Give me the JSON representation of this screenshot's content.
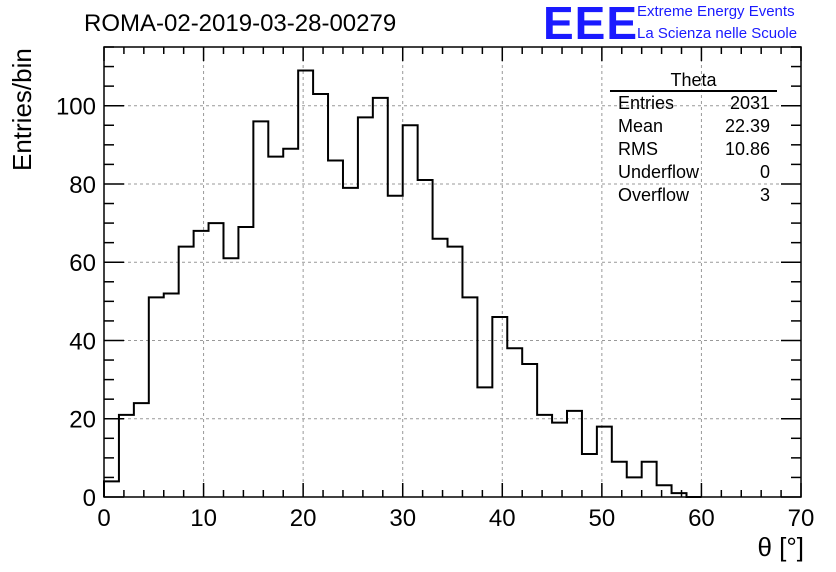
{
  "header": {
    "title": "ROMA-02-2019-03-28-00279",
    "logo_text": "EEE",
    "logo_line1": "Extreme Energy Events",
    "logo_line2": "La Scienza nelle Scuole"
  },
  "stats": {
    "name": "Theta",
    "rows": [
      {
        "label": "Entries",
        "value": "2031"
      },
      {
        "label": "Mean",
        "value": "22.39"
      },
      {
        "label": "RMS",
        "value": "10.86"
      },
      {
        "label": "Underflow",
        "value": "0"
      },
      {
        "label": "Overflow",
        "value": "3"
      }
    ]
  },
  "colors": {
    "accent": "#1a1aff",
    "line": "#000000",
    "grid": "#999999"
  },
  "chart_data": {
    "type": "histogram",
    "xlabel": "θ [°]",
    "ylabel": "Entries/bin",
    "xlim": [
      0,
      70
    ],
    "ylim": [
      0,
      115
    ],
    "grid": true,
    "bin_width": 1.5,
    "bin_start": 0,
    "x_ticks": [
      0,
      10,
      20,
      30,
      40,
      50,
      60,
      70
    ],
    "y_ticks": [
      0,
      20,
      40,
      60,
      80,
      100
    ],
    "values": [
      4,
      21,
      24,
      51,
      52,
      64,
      68,
      70,
      61,
      69,
      96,
      87,
      89,
      109,
      103,
      86,
      79,
      97,
      102,
      77,
      95,
      81,
      66,
      64,
      51,
      28,
      46,
      38,
      34,
      21,
      19,
      22,
      11,
      18,
      9,
      5,
      9,
      3,
      1,
      0
    ]
  }
}
